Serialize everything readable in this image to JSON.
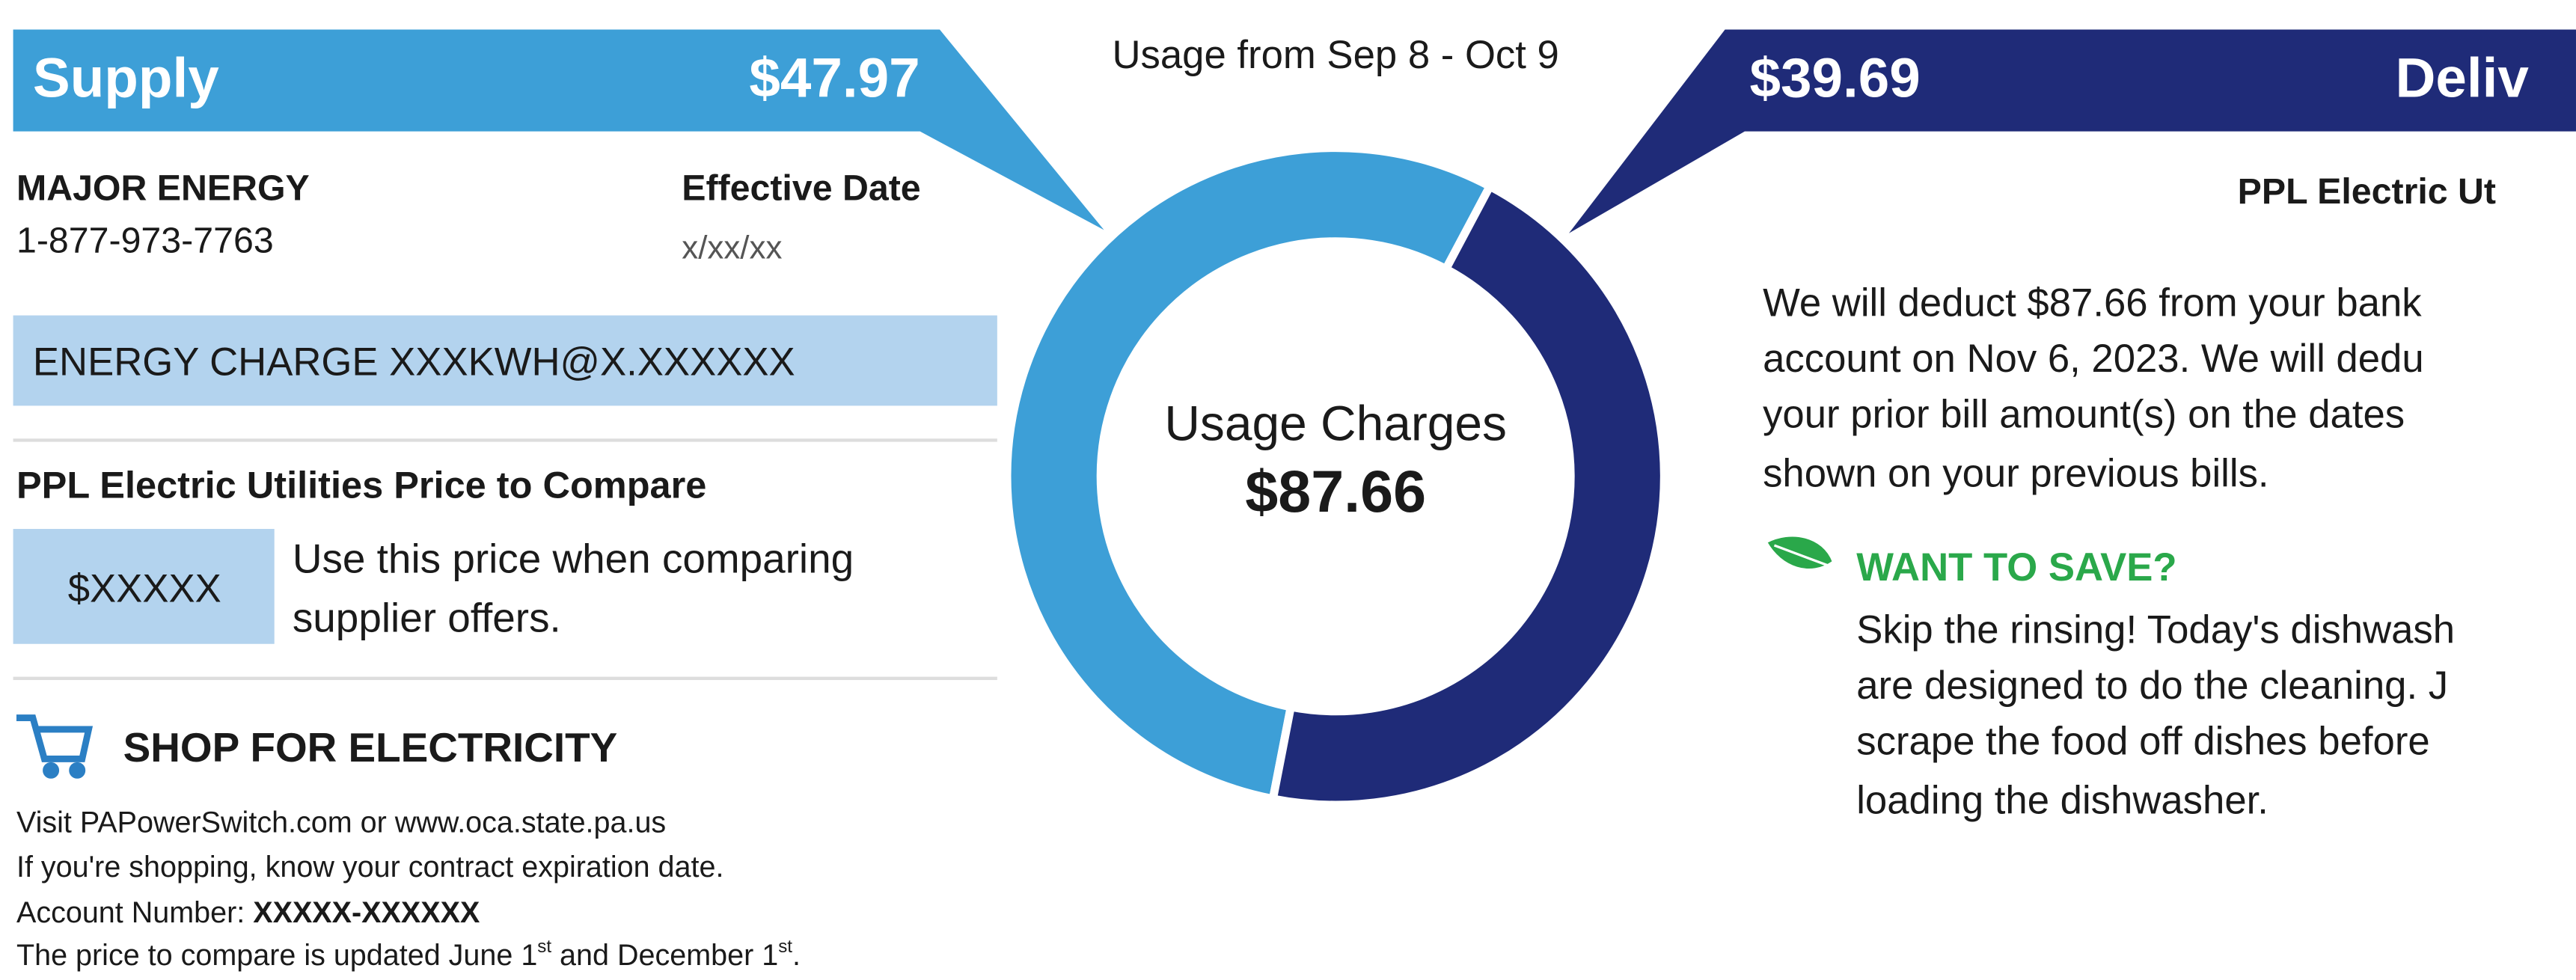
{
  "usage_period": "Usage from Sep  8 - Oct  9",
  "supply": {
    "title": "Supply",
    "amount": "$47.97",
    "supplier": "MAJOR ENERGY",
    "phone": "1-877-973-7763",
    "effective_date_label": "Effective Date",
    "effective_date": "x/xx/xx",
    "energy_charge": "ENERGY CHARGE XXXKWH@X.XXXXXX",
    "price_to_compare_title": "PPL Electric Utilities Price to Compare",
    "price_to_compare": "$XXXXX",
    "price_note": [
      "Use this price when comparing",
      "supplier offers."
    ],
    "shop_title": "SHOP FOR ELECTRICITY",
    "shop_lines": [
      "Visit PAPowerSwitch.com or www.oca.state.pa.us",
      "If you're shopping, know your contract expiration date."
    ],
    "account_label": "Account Number: ",
    "account_number": "XXXXX-XXXXXX",
    "update_note": [
      "The price to compare is updated June 1",
      "st",
      " and December 1",
      "st",
      "."
    ]
  },
  "delivery": {
    "title": "Deliv",
    "amount": "$39.69",
    "utility": "PPL Electric Ut",
    "paragraph": [
      "We will deduct $87.66 from your bank",
      "account on Nov  6, 2023. We will dedu",
      "your prior bill amount(s) on the dates",
      "shown on your previous bills."
    ],
    "tip_title": "WANT TO SAVE?",
    "tip": [
      "Skip the rinsing! Today's dishwash",
      "are designed to do the cleaning. J",
      "scrape the food off dishes before",
      "loading the dishwasher."
    ]
  },
  "donut": {
    "center_label": "Usage Charges",
    "total": "$87.66",
    "values": [
      47.97,
      39.69
    ],
    "colors": [
      "#3d9fd7",
      "#1f2b78"
    ]
  }
}
